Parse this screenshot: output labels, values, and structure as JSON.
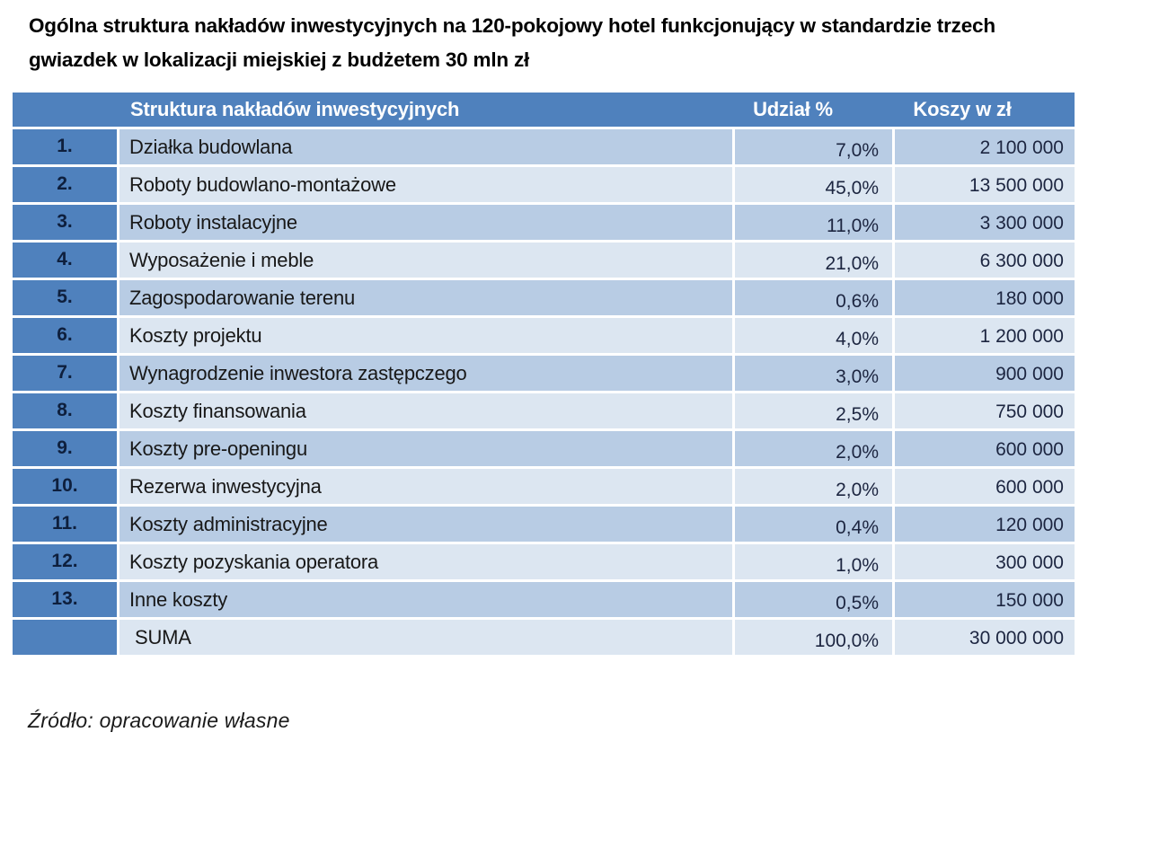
{
  "title": {
    "lines": [
      "Ogólna struktura nakładów inwestycyjnych na 120-pokojowy hotel funkcjonujący w standardzie trzech",
      "gwiazdek w lokalizacji miejskiej z budżetem 30 mln zł"
    ]
  },
  "table": {
    "headers": {
      "structure": "Struktura nakładów inwestycyjnych",
      "share": "Udział %",
      "cost": "Koszy w zł"
    },
    "rows": [
      {
        "no": "1.",
        "name": "Działka budowlana",
        "share": "7,0%",
        "cost": "2 100 000"
      },
      {
        "no": "2.",
        "name": "Roboty budowlano-montażowe",
        "share": "45,0%",
        "cost": "13 500 000"
      },
      {
        "no": "3.",
        "name": "Roboty instalacyjne",
        "share": "11,0%",
        "cost": "3 300 000"
      },
      {
        "no": "4.",
        "name": "Wyposażenie i meble",
        "share": "21,0%",
        "cost": "6 300 000"
      },
      {
        "no": "5.",
        "name": "Zagospodarowanie terenu",
        "share": "0,6%",
        "cost": "180 000"
      },
      {
        "no": "6.",
        "name": "Koszty projektu",
        "share": "4,0%",
        "cost": "1 200 000"
      },
      {
        "no": "7.",
        "name": "Wynagrodzenie inwestora zastępczego",
        "share": "3,0%",
        "cost": "900 000"
      },
      {
        "no": "8.",
        "name": "Koszty finansowania",
        "share": "2,5%",
        "cost": "750 000"
      },
      {
        "no": "9.",
        "name": "Koszty pre-openingu",
        "share": "2,0%",
        "cost": "600 000"
      },
      {
        "no": "10.",
        "name": "Rezerwa inwestycyjna",
        "share": "2,0%",
        "cost": "600 000"
      },
      {
        "no": "11.",
        "name": "Koszty administracyjne",
        "share": "0,4%",
        "cost": "120 000"
      },
      {
        "no": "12.",
        "name": "Koszty pozyskania operatora",
        "share": "1,0%",
        "cost": "300 000"
      },
      {
        "no": "13.",
        "name": "Inne koszty",
        "share": "0,5%",
        "cost": "150 000"
      }
    ],
    "summary": {
      "no": "",
      "name": "SUMA",
      "share": "100,0%",
      "cost": "30 000 000"
    }
  },
  "source": "Źródło: opracowanie własne",
  "colors": {
    "header_blue": "#4f81bd",
    "row_band_dark": "#b8cce4",
    "row_band_light": "#dce6f1",
    "header_text": "#ffffff",
    "cell_text": "#1a1a1a"
  }
}
